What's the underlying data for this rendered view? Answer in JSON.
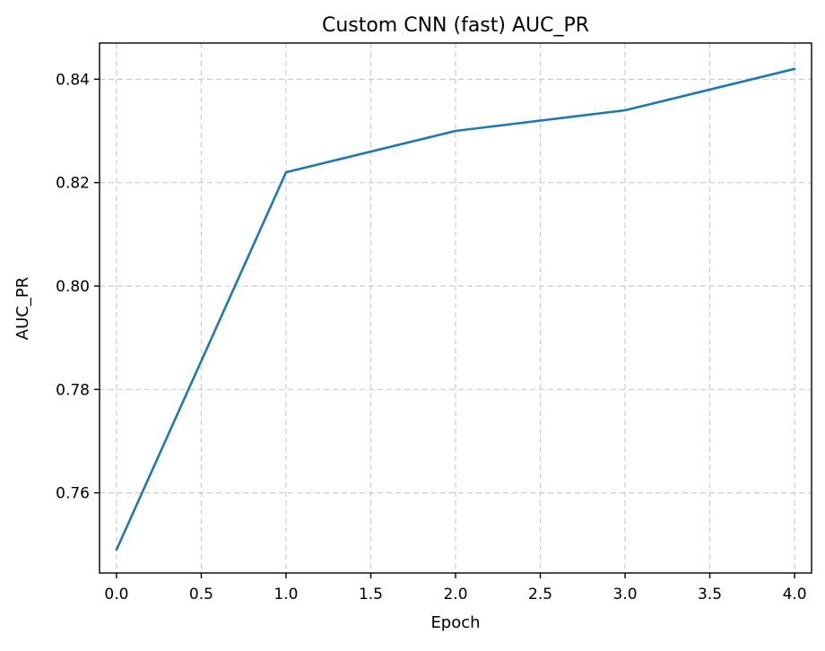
{
  "chart_data": {
    "type": "line",
    "title": "Custom CNN (fast) AUC_PR",
    "xlabel": "Epoch",
    "ylabel": "AUC_PR",
    "xlim": [
      -0.1,
      4.1
    ],
    "ylim": [
      0.7445,
      0.847
    ],
    "xticks": [
      0.0,
      0.5,
      1.0,
      1.5,
      2.0,
      2.5,
      3.0,
      3.5,
      4.0
    ],
    "xtick_labels": [
      "0.0",
      "0.5",
      "1.0",
      "1.5",
      "2.0",
      "2.5",
      "3.0",
      "3.5",
      "4.0"
    ],
    "yticks": [
      0.76,
      0.78,
      0.8,
      0.82,
      0.84
    ],
    "ytick_labels": [
      "0.76",
      "0.78",
      "0.80",
      "0.82",
      "0.84"
    ],
    "grid": true,
    "series": [
      {
        "color": "#1f77b4",
        "x": [
          0,
          1,
          2,
          3,
          4
        ],
        "y": [
          0.749,
          0.822,
          0.83,
          0.834,
          0.842
        ]
      }
    ]
  }
}
